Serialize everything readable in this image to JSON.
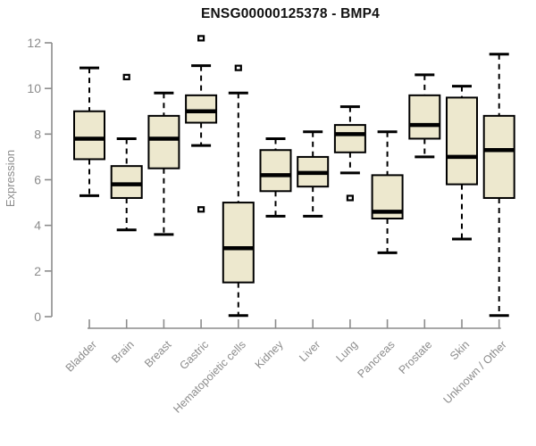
{
  "chart_data": {
    "type": "boxplot",
    "title": "ENSG00000125378 - BMP4",
    "ylabel": "Expression",
    "xlabel": "",
    "ylim": [
      0,
      12.2
    ],
    "yticks": [
      0,
      2,
      4,
      6,
      8,
      10,
      12
    ],
    "grid": false,
    "legend": "none",
    "categories": [
      "Bladder",
      "Brain",
      "Breast",
      "Gastric",
      "Hematopoietic cells",
      "Kidney",
      "Liver",
      "Lung",
      "Pancreas",
      "Prostate",
      "Skin",
      "Unknown / Other"
    ],
    "series": [
      {
        "name": "Bladder",
        "low": 5.3,
        "q1": 6.9,
        "median": 7.8,
        "q3": 9.0,
        "high": 10.9,
        "outliers": []
      },
      {
        "name": "Brain",
        "low": 3.8,
        "q1": 5.2,
        "median": 5.8,
        "q3": 6.6,
        "high": 7.8,
        "outliers": [
          10.5
        ]
      },
      {
        "name": "Breast",
        "low": 3.6,
        "q1": 6.5,
        "median": 7.8,
        "q3": 8.8,
        "high": 9.8,
        "outliers": []
      },
      {
        "name": "Gastric",
        "low": 7.5,
        "q1": 8.5,
        "median": 9.0,
        "q3": 9.7,
        "high": 11.0,
        "outliers": [
          12.2,
          4.7
        ]
      },
      {
        "name": "Hematopoietic cells",
        "low": 0.05,
        "q1": 1.5,
        "median": 3.0,
        "q3": 5.0,
        "high": 9.8,
        "outliers": [
          10.9
        ]
      },
      {
        "name": "Kidney",
        "low": 4.4,
        "q1": 5.5,
        "median": 6.2,
        "q3": 7.3,
        "high": 7.8,
        "outliers": []
      },
      {
        "name": "Liver",
        "low": 4.4,
        "q1": 5.7,
        "median": 6.3,
        "q3": 7.0,
        "high": 8.1,
        "outliers": []
      },
      {
        "name": "Lung",
        "low": 6.3,
        "q1": 7.2,
        "median": 8.0,
        "q3": 8.4,
        "high": 9.2,
        "outliers": [
          5.2
        ]
      },
      {
        "name": "Pancreas",
        "low": 2.8,
        "q1": 4.3,
        "median": 4.6,
        "q3": 6.2,
        "high": 8.1,
        "outliers": []
      },
      {
        "name": "Prostate",
        "low": 7.0,
        "q1": 7.8,
        "median": 8.4,
        "q3": 9.7,
        "high": 10.6,
        "outliers": []
      },
      {
        "name": "Skin",
        "low": 3.4,
        "q1": 5.8,
        "median": 7.0,
        "q3": 9.6,
        "high": 10.1,
        "outliers": []
      },
      {
        "name": "Unknown / Other",
        "low": 0.05,
        "q1": 5.2,
        "median": 7.3,
        "q3": 8.8,
        "high": 11.5,
        "outliers": []
      }
    ],
    "colors": {
      "box_fill": "#ede8ce",
      "box_border": "#000000",
      "median": "#000000",
      "whisker": "#000000",
      "axis": "#8c8c8c",
      "tick_label": "#8c8c8c",
      "title": "#111111",
      "background": "#ffffff"
    }
  }
}
